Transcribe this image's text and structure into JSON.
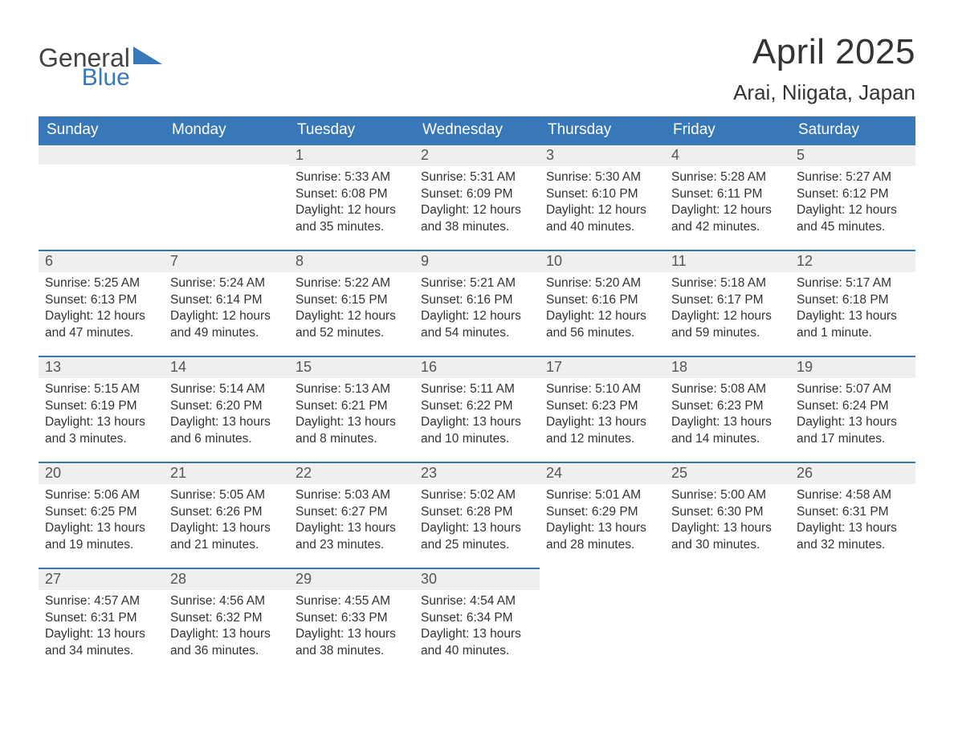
{
  "brand": {
    "word1": "General",
    "word2": "Blue",
    "triangle_color": "#3878b8"
  },
  "title": "April 2025",
  "location": "Arai, Niigata, Japan",
  "colors": {
    "header_bg": "#3878b8",
    "header_text": "#ffffff",
    "daybar_bg": "#efefef",
    "daybar_border": "#3878b8",
    "body_text": "#333333",
    "page_bg": "#ffffff"
  },
  "weekdays": [
    "Sunday",
    "Monday",
    "Tuesday",
    "Wednesday",
    "Thursday",
    "Friday",
    "Saturday"
  ],
  "weeks": [
    [
      null,
      null,
      {
        "n": "1",
        "sr": "Sunrise: 5:33 AM",
        "ss": "Sunset: 6:08 PM",
        "dl": "Daylight: 12 hours and 35 minutes."
      },
      {
        "n": "2",
        "sr": "Sunrise: 5:31 AM",
        "ss": "Sunset: 6:09 PM",
        "dl": "Daylight: 12 hours and 38 minutes."
      },
      {
        "n": "3",
        "sr": "Sunrise: 5:30 AM",
        "ss": "Sunset: 6:10 PM",
        "dl": "Daylight: 12 hours and 40 minutes."
      },
      {
        "n": "4",
        "sr": "Sunrise: 5:28 AM",
        "ss": "Sunset: 6:11 PM",
        "dl": "Daylight: 12 hours and 42 minutes."
      },
      {
        "n": "5",
        "sr": "Sunrise: 5:27 AM",
        "ss": "Sunset: 6:12 PM",
        "dl": "Daylight: 12 hours and 45 minutes."
      }
    ],
    [
      {
        "n": "6",
        "sr": "Sunrise: 5:25 AM",
        "ss": "Sunset: 6:13 PM",
        "dl": "Daylight: 12 hours and 47 minutes."
      },
      {
        "n": "7",
        "sr": "Sunrise: 5:24 AM",
        "ss": "Sunset: 6:14 PM",
        "dl": "Daylight: 12 hours and 49 minutes."
      },
      {
        "n": "8",
        "sr": "Sunrise: 5:22 AM",
        "ss": "Sunset: 6:15 PM",
        "dl": "Daylight: 12 hours and 52 minutes."
      },
      {
        "n": "9",
        "sr": "Sunrise: 5:21 AM",
        "ss": "Sunset: 6:16 PM",
        "dl": "Daylight: 12 hours and 54 minutes."
      },
      {
        "n": "10",
        "sr": "Sunrise: 5:20 AM",
        "ss": "Sunset: 6:16 PM",
        "dl": "Daylight: 12 hours and 56 minutes."
      },
      {
        "n": "11",
        "sr": "Sunrise: 5:18 AM",
        "ss": "Sunset: 6:17 PM",
        "dl": "Daylight: 12 hours and 59 minutes."
      },
      {
        "n": "12",
        "sr": "Sunrise: 5:17 AM",
        "ss": "Sunset: 6:18 PM",
        "dl": "Daylight: 13 hours and 1 minute."
      }
    ],
    [
      {
        "n": "13",
        "sr": "Sunrise: 5:15 AM",
        "ss": "Sunset: 6:19 PM",
        "dl": "Daylight: 13 hours and 3 minutes."
      },
      {
        "n": "14",
        "sr": "Sunrise: 5:14 AM",
        "ss": "Sunset: 6:20 PM",
        "dl": "Daylight: 13 hours and 6 minutes."
      },
      {
        "n": "15",
        "sr": "Sunrise: 5:13 AM",
        "ss": "Sunset: 6:21 PM",
        "dl": "Daylight: 13 hours and 8 minutes."
      },
      {
        "n": "16",
        "sr": "Sunrise: 5:11 AM",
        "ss": "Sunset: 6:22 PM",
        "dl": "Daylight: 13 hours and 10 minutes."
      },
      {
        "n": "17",
        "sr": "Sunrise: 5:10 AM",
        "ss": "Sunset: 6:23 PM",
        "dl": "Daylight: 13 hours and 12 minutes."
      },
      {
        "n": "18",
        "sr": "Sunrise: 5:08 AM",
        "ss": "Sunset: 6:23 PM",
        "dl": "Daylight: 13 hours and 14 minutes."
      },
      {
        "n": "19",
        "sr": "Sunrise: 5:07 AM",
        "ss": "Sunset: 6:24 PM",
        "dl": "Daylight: 13 hours and 17 minutes."
      }
    ],
    [
      {
        "n": "20",
        "sr": "Sunrise: 5:06 AM",
        "ss": "Sunset: 6:25 PM",
        "dl": "Daylight: 13 hours and 19 minutes."
      },
      {
        "n": "21",
        "sr": "Sunrise: 5:05 AM",
        "ss": "Sunset: 6:26 PM",
        "dl": "Daylight: 13 hours and 21 minutes."
      },
      {
        "n": "22",
        "sr": "Sunrise: 5:03 AM",
        "ss": "Sunset: 6:27 PM",
        "dl": "Daylight: 13 hours and 23 minutes."
      },
      {
        "n": "23",
        "sr": "Sunrise: 5:02 AM",
        "ss": "Sunset: 6:28 PM",
        "dl": "Daylight: 13 hours and 25 minutes."
      },
      {
        "n": "24",
        "sr": "Sunrise: 5:01 AM",
        "ss": "Sunset: 6:29 PM",
        "dl": "Daylight: 13 hours and 28 minutes."
      },
      {
        "n": "25",
        "sr": "Sunrise: 5:00 AM",
        "ss": "Sunset: 6:30 PM",
        "dl": "Daylight: 13 hours and 30 minutes."
      },
      {
        "n": "26",
        "sr": "Sunrise: 4:58 AM",
        "ss": "Sunset: 6:31 PM",
        "dl": "Daylight: 13 hours and 32 minutes."
      }
    ],
    [
      {
        "n": "27",
        "sr": "Sunrise: 4:57 AM",
        "ss": "Sunset: 6:31 PM",
        "dl": "Daylight: 13 hours and 34 minutes."
      },
      {
        "n": "28",
        "sr": "Sunrise: 4:56 AM",
        "ss": "Sunset: 6:32 PM",
        "dl": "Daylight: 13 hours and 36 minutes."
      },
      {
        "n": "29",
        "sr": "Sunrise: 4:55 AM",
        "ss": "Sunset: 6:33 PM",
        "dl": "Daylight: 13 hours and 38 minutes."
      },
      {
        "n": "30",
        "sr": "Sunrise: 4:54 AM",
        "ss": "Sunset: 6:34 PM",
        "dl": "Daylight: 13 hours and 40 minutes."
      },
      null,
      null,
      null
    ]
  ]
}
